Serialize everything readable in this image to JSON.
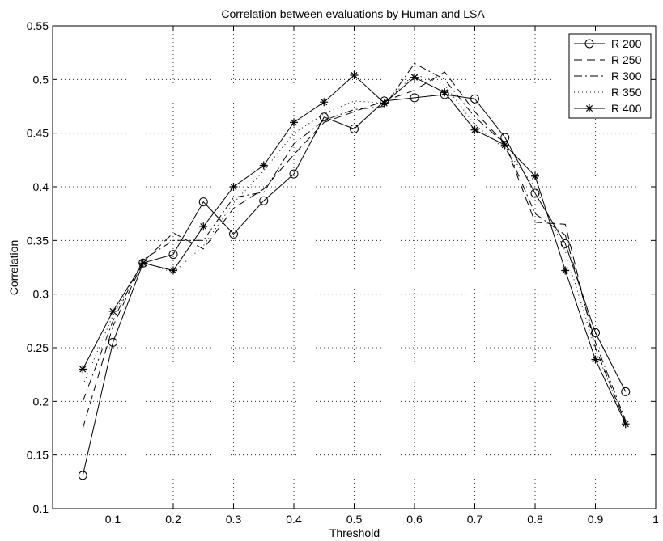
{
  "chart_data": {
    "type": "line",
    "title": "Correlation between evaluations by Human and LSA",
    "xlabel": "Threshold",
    "ylabel": "Correlation",
    "xlim": [
      0,
      1
    ],
    "ylim": [
      0.1,
      0.55
    ],
    "xticks": [
      0.1,
      0.2,
      0.3,
      0.4,
      0.5,
      0.6,
      0.7,
      0.8,
      0.9,
      1
    ],
    "xtick_labels": [
      "0.1",
      "0.2",
      "0.3",
      "0.4",
      "0.5",
      "0.6",
      "0.7",
      "0.8",
      "0.9",
      "1"
    ],
    "yticks": [
      0.1,
      0.15,
      0.2,
      0.25,
      0.3,
      0.35,
      0.4,
      0.45,
      0.5,
      0.55
    ],
    "ytick_labels": [
      "0.1",
      "0.15",
      "0.2",
      "0.25",
      "0.3",
      "0.35",
      "0.4",
      "0.45",
      "0.5",
      "0.55"
    ],
    "grid": true,
    "legend_position": "top-right",
    "x": [
      0.05,
      0.1,
      0.15,
      0.2,
      0.25,
      0.3,
      0.35,
      0.4,
      0.45,
      0.5,
      0.55,
      0.6,
      0.65,
      0.7,
      0.75,
      0.8,
      0.85,
      0.9,
      0.95
    ],
    "series": [
      {
        "name": "R 200",
        "style": "solid-circle",
        "values": [
          0.131,
          0.255,
          0.329,
          0.337,
          0.386,
          0.356,
          0.387,
          0.412,
          0.465,
          0.454,
          0.48,
          0.483,
          0.486,
          0.482,
          0.446,
          0.394,
          0.347,
          0.264,
          0.209
        ]
      },
      {
        "name": "R 250",
        "style": "dashed",
        "values": [
          0.175,
          0.27,
          0.33,
          0.357,
          0.342,
          0.38,
          0.398,
          0.43,
          0.46,
          0.47,
          0.48,
          0.49,
          0.507,
          0.47,
          0.44,
          0.367,
          0.365,
          0.25,
          0.18
        ]
      },
      {
        "name": "R 300",
        "style": "dashdot",
        "values": [
          0.2,
          0.275,
          0.332,
          0.35,
          0.35,
          0.39,
          0.395,
          0.44,
          0.462,
          0.472,
          0.475,
          0.515,
          0.5,
          0.465,
          0.44,
          0.375,
          0.355,
          0.255,
          0.182
        ]
      },
      {
        "name": "R 350",
        "style": "dotted",
        "values": [
          0.215,
          0.28,
          0.33,
          0.32,
          0.345,
          0.385,
          0.415,
          0.45,
          0.468,
          0.48,
          0.478,
          0.505,
          0.495,
          0.458,
          0.435,
          0.4,
          0.34,
          0.248,
          0.18
        ]
      },
      {
        "name": "R 400",
        "style": "solid-star",
        "values": [
          0.23,
          0.284,
          0.329,
          0.322,
          0.363,
          0.4,
          0.42,
          0.46,
          0.479,
          0.504,
          0.478,
          0.502,
          0.488,
          0.453,
          0.439,
          0.41,
          0.322,
          0.239,
          0.179
        ]
      }
    ]
  }
}
